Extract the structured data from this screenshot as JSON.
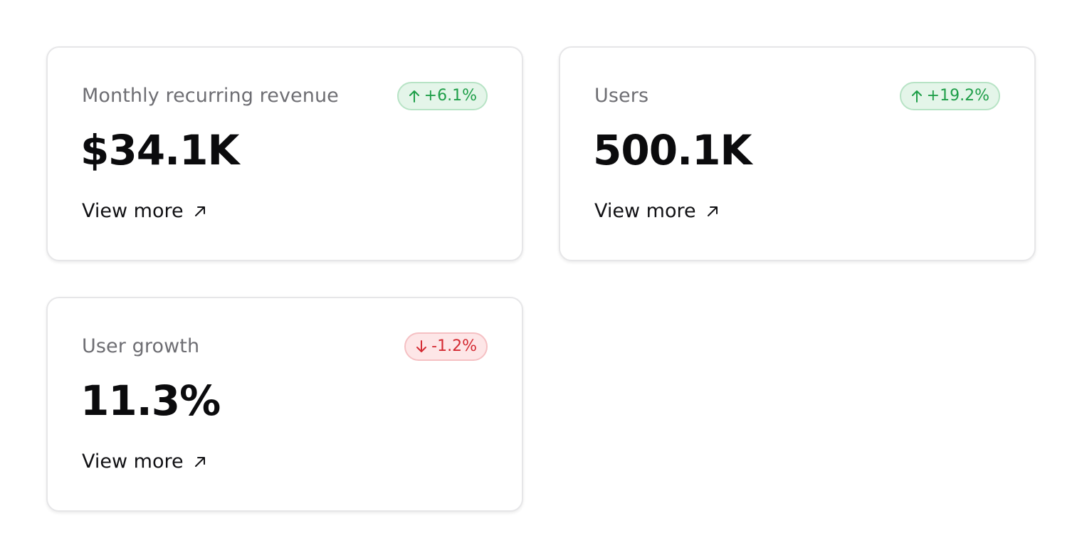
{
  "colors": {
    "positive": "#1e9e48",
    "negative": "#d42a32",
    "label": "#6e6e73",
    "value": "#0b0b0d"
  },
  "cards": [
    {
      "label": "Monthly recurring revenue",
      "value": "$34.1K",
      "change": "+6.1%",
      "trend": "up",
      "trend_icon": "arrow-up-icon",
      "link_label": "View more",
      "link_icon": "arrow-up-right-icon"
    },
    {
      "label": "Users",
      "value": "500.1K",
      "change": "+19.2%",
      "trend": "up",
      "trend_icon": "arrow-up-icon",
      "link_label": "View more",
      "link_icon": "arrow-up-right-icon"
    },
    {
      "label": "User growth",
      "value": "11.3%",
      "change": "-1.2%",
      "trend": "down",
      "trend_icon": "arrow-down-icon",
      "link_label": "View more",
      "link_icon": "arrow-up-right-icon"
    }
  ]
}
